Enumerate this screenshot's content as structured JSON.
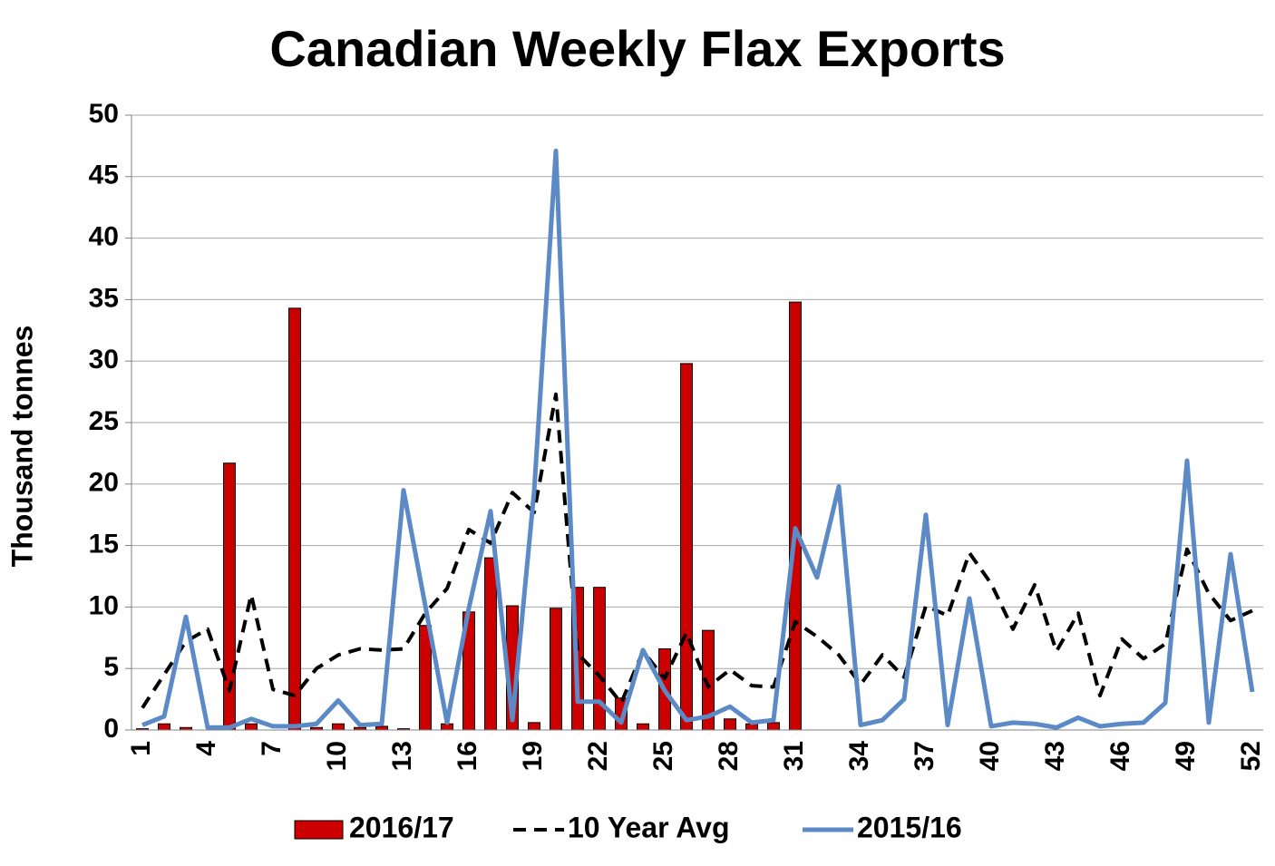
{
  "chart_data": {
    "type": "bar_line",
    "title": "Canadian Weekly Flax Exports",
    "ylabel": "Thousand tonnes",
    "categories": [
      "1",
      null,
      null,
      "4",
      null,
      null,
      "7",
      null,
      null,
      "10",
      null,
      null,
      "13",
      null,
      null,
      "16",
      null,
      null,
      "19",
      null,
      null,
      "22",
      null,
      null,
      "25",
      null,
      null,
      "28",
      null,
      null,
      "31",
      null,
      null,
      "34",
      null,
      null,
      "37",
      null,
      null,
      "40",
      null,
      null,
      "43",
      null,
      null,
      "46",
      null,
      null,
      "49",
      null,
      null,
      "52"
    ],
    "ylim": [
      0,
      50
    ],
    "yticks": [
      0,
      5,
      10,
      15,
      20,
      25,
      30,
      35,
      40,
      45,
      50
    ],
    "grid": true,
    "legend": "bottom",
    "series": [
      {
        "name": "2016/17",
        "type": "bar",
        "color": "#cc0000",
        "values": [
          0.1,
          0.5,
          0.2,
          0,
          21.7,
          0.5,
          0,
          34.3,
          0.2,
          0.5,
          0.2,
          0.3,
          0.1,
          8.5,
          0.5,
          9.6,
          14,
          10.1,
          0.6,
          9.9,
          11.6,
          11.6,
          2.6,
          0.5,
          6.6,
          29.8,
          8.1,
          0.9,
          0.5,
          0.6,
          34.8,
          null,
          null,
          null,
          null,
          null,
          null,
          null,
          null,
          null,
          null,
          null,
          null,
          null,
          null,
          null,
          null,
          null,
          null,
          null,
          null,
          null
        ]
      },
      {
        "name": "10 Year Avg",
        "type": "line",
        "dash": true,
        "color": "#000000",
        "values": [
          1.8,
          4.5,
          7.2,
          8.2,
          3.2,
          11,
          3.3,
          2.8,
          5,
          6.1,
          6.6,
          6.5,
          6.6,
          9.5,
          11.5,
          16.3,
          15.2,
          19.3,
          17.7,
          27.3,
          6.2,
          4.4,
          2.2,
          6.4,
          4.2,
          7.9,
          3.5,
          4.9,
          3.6,
          3.5,
          8.8,
          7.6,
          6.1,
          3.7,
          6.1,
          4.3,
          10.1,
          9.3,
          14.4,
          11.9,
          8.2,
          11.8,
          6.4,
          9.5,
          2.8,
          7.4,
          5.8,
          7,
          14.7,
          11.1,
          8.9,
          9.7
        ]
      },
      {
        "name": "2015/16",
        "type": "line",
        "dash": false,
        "color": "#5b8ac6",
        "values": [
          0.4,
          1.1,
          9.2,
          0.2,
          0.2,
          0.9,
          0.3,
          0.3,
          0.5,
          2.4,
          0.4,
          0.5,
          19.5,
          10.1,
          0.6,
          9.9,
          17.8,
          0.8,
          19.4,
          47.1,
          2.3,
          2.3,
          0.6,
          6.5,
          3.2,
          0.8,
          1.1,
          1.9,
          0.6,
          0.8,
          16.4,
          12.4,
          19.8,
          0.4,
          0.8,
          2.5,
          17.5,
          0.4,
          10.7,
          0.3,
          0.6,
          0.5,
          0.2,
          1,
          0.3,
          0.5,
          0.6,
          2.2,
          21.9,
          0.6,
          14.3,
          3.1
        ]
      }
    ]
  }
}
